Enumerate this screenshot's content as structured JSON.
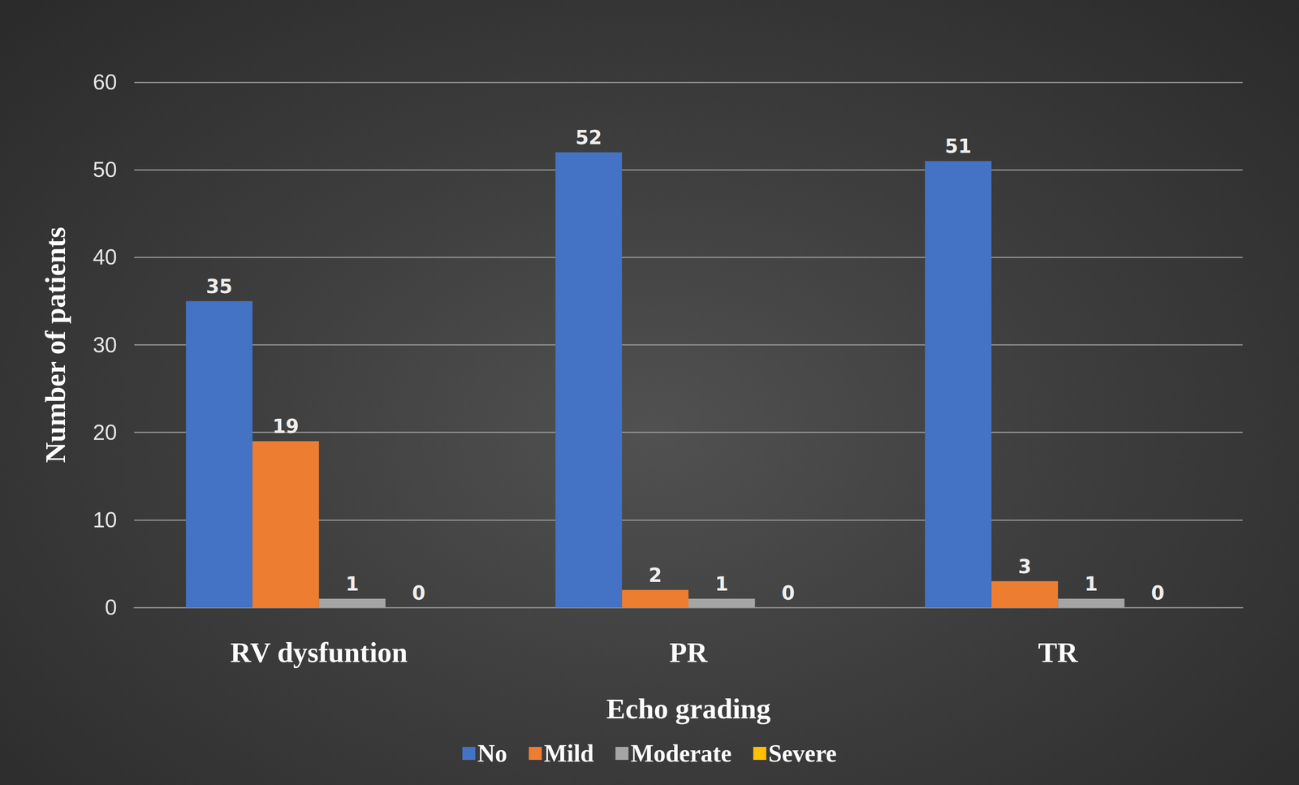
{
  "chart_data": {
    "type": "bar",
    "xlabel": "Echo grading",
    "ylabel": "Number of patients",
    "categories": [
      "RV dysfuntion",
      "PR",
      "TR"
    ],
    "series": [
      {
        "name": "No",
        "color": "#4472c4",
        "values": [
          35,
          52,
          51
        ]
      },
      {
        "name": "Mild",
        "color": "#ed7d31",
        "values": [
          19,
          2,
          3
        ]
      },
      {
        "name": "Moderate",
        "color": "#a5a5a5",
        "values": [
          1,
          1,
          1
        ]
      },
      {
        "name": "Severe",
        "color": "#ffc000",
        "values": [
          0,
          0,
          0
        ]
      }
    ],
    "ylim": [
      0,
      60
    ],
    "yticks": [
      0,
      10,
      20,
      30,
      40,
      50,
      60
    ],
    "grid": true,
    "legend": "bottom",
    "data_labels": true
  }
}
